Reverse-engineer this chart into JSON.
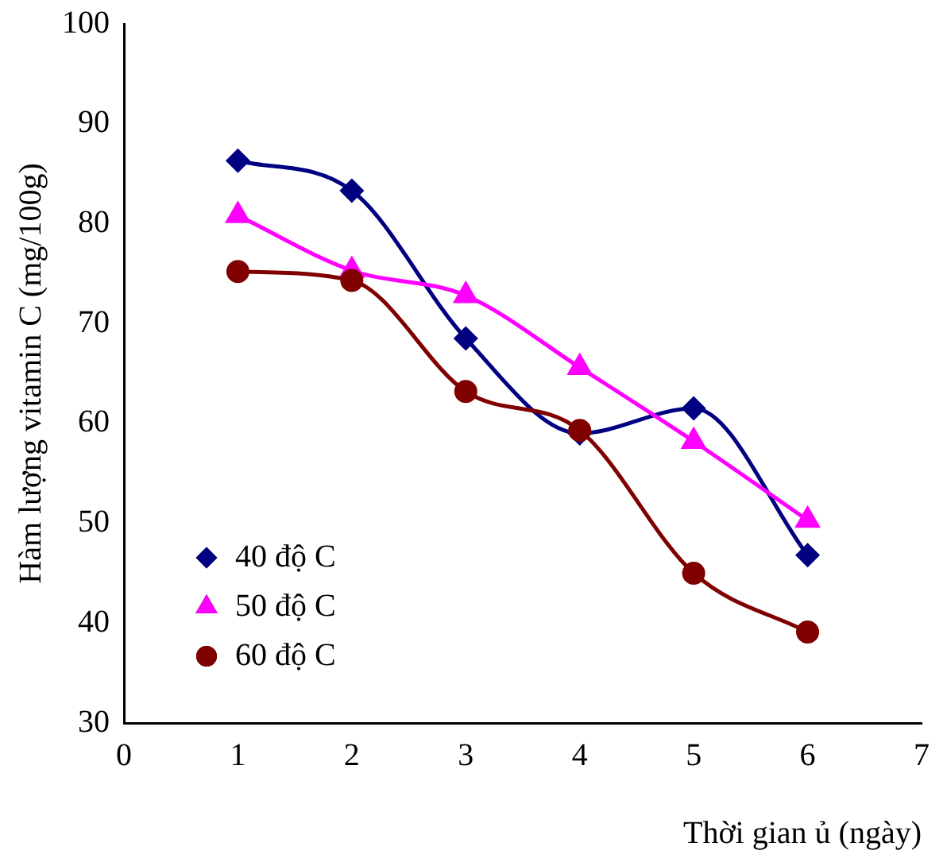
{
  "chart_data": {
    "type": "line",
    "xlabel": "Thời gian ủ (ngày)",
    "ylabel": "Hàm lượng vitamin C (mg/100g)",
    "x": [
      1,
      2,
      3,
      4,
      5,
      6
    ],
    "series": [
      {
        "name": "40 độ C",
        "color": "#000080",
        "marker": "diamond",
        "values": [
          86.3,
          83.3,
          68.5,
          59.0,
          61.5,
          46.8
        ]
      },
      {
        "name": "50 độ C",
        "color": "#ff00ff",
        "marker": "triangle",
        "values": [
          80.8,
          75.3,
          72.8,
          65.6,
          58.2,
          50.3
        ]
      },
      {
        "name": "60 độ C",
        "color": "#800000",
        "marker": "circle",
        "values": [
          75.2,
          74.3,
          63.2,
          59.3,
          45.0,
          39.1
        ]
      }
    ],
    "xlim": [
      0,
      7
    ],
    "xticks": [
      0,
      1,
      2,
      3,
      4,
      5,
      6,
      7
    ],
    "ylim": [
      30,
      100
    ],
    "yticks": [
      30,
      40,
      50,
      60,
      70,
      80,
      90,
      100
    ],
    "grid": false,
    "legend": "bottom left"
  }
}
